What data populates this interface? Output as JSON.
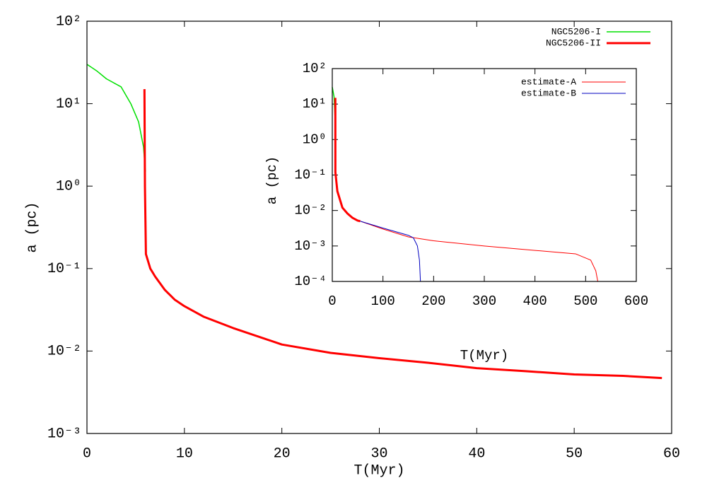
{
  "chart_data": [
    {
      "type": "line",
      "x_label": "T(Myr)",
      "y_label": "a (pc)",
      "y_log": true,
      "xlim": [
        0,
        60
      ],
      "xticks": [
        0,
        10,
        20,
        30,
        40,
        50,
        60
      ],
      "ylim": [
        0.001,
        100
      ],
      "yticks": [
        {
          "value": 100,
          "label": "10²"
        },
        {
          "value": 10,
          "label": "10¹"
        },
        {
          "value": 1,
          "label": "10⁰"
        },
        {
          "value": 0.1,
          "label": "10⁻¹"
        },
        {
          "value": 0.01,
          "label": "10⁻²"
        },
        {
          "value": 0.001,
          "label": "10⁻³"
        }
      ],
      "legend": "top-right",
      "series": [
        {
          "name": "NGC5206-I",
          "color": "#00e000",
          "line_width": 1.5,
          "x": [
            0,
            1,
            2,
            3.5,
            4.5,
            5.3,
            5.8,
            6
          ],
          "values": [
            30,
            25,
            20,
            16,
            10,
            6,
            3,
            1.5
          ]
        },
        {
          "name": "NGC5206-II",
          "color": "#ff0000",
          "line_width": 3,
          "x": [
            5.9,
            5.95,
            6.05,
            6.5,
            7,
            8,
            9,
            10,
            12,
            15,
            20,
            25,
            30,
            35,
            40,
            45,
            50,
            55,
            59
          ],
          "values": [
            15,
            1,
            0.15,
            0.1,
            0.08,
            0.055,
            0.042,
            0.035,
            0.026,
            0.019,
            0.012,
            0.0095,
            0.0082,
            0.0072,
            0.0062,
            0.0057,
            0.0052,
            0.005,
            0.0047
          ]
        }
      ]
    },
    {
      "type": "line",
      "x_label": "T(Myr)",
      "y_label": "a (pc)",
      "y_log": true,
      "xlim": [
        0,
        600
      ],
      "xticks": [
        0,
        100,
        200,
        300,
        400,
        500,
        600
      ],
      "ylim": [
        0.0001,
        100
      ],
      "yticks": [
        {
          "value": 100,
          "label": "10²"
        },
        {
          "value": 10,
          "label": "10¹"
        },
        {
          "value": 1,
          "label": "10⁰"
        },
        {
          "value": 0.1,
          "label": "10⁻¹"
        },
        {
          "value": 0.01,
          "label": "10⁻²"
        },
        {
          "value": 0.001,
          "label": "10⁻³"
        },
        {
          "value": 0.0001,
          "label": "10⁻⁴"
        }
      ],
      "legend": "top-right",
      "series": [
        {
          "name": "estimate-A",
          "color": "#ff0000",
          "line_width": 1,
          "x": [
            55,
            100,
            150,
            200,
            300,
            400,
            480,
            510,
            520,
            524
          ],
          "values": [
            0.005,
            0.003,
            0.0018,
            0.0014,
            0.001,
            0.00075,
            0.0006,
            0.0004,
            0.0002,
            0.0001
          ]
        },
        {
          "name": "estimate-B",
          "color": "#0000c0",
          "line_width": 1,
          "x": [
            55,
            100,
            150,
            160,
            168,
            172,
            174
          ],
          "values": [
            0.005,
            0.0032,
            0.002,
            0.0017,
            0.001,
            0.0004,
            0.0001
          ]
        },
        {
          "color": "#00e000",
          "line_width": 1.5,
          "x": [
            0,
            3.5,
            5.8,
            6
          ],
          "values": [
            30,
            16,
            3,
            1.5
          ]
        },
        {
          "color": "#ff0000",
          "line_width": 3,
          "x": [
            6,
            6.1,
            10,
            20,
            30,
            40,
            50,
            55
          ],
          "values": [
            15,
            0.12,
            0.035,
            0.012,
            0.0082,
            0.0062,
            0.0052,
            0.005
          ]
        }
      ]
    }
  ]
}
